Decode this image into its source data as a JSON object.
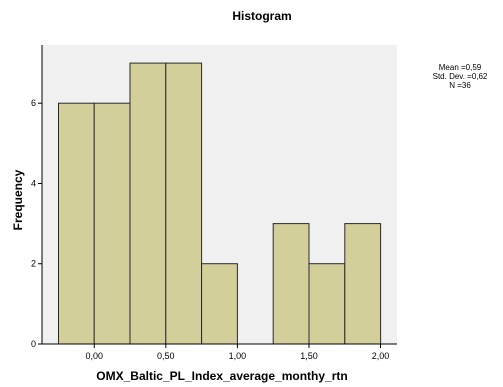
{
  "chart_data": {
    "type": "bar",
    "title": "Histogram",
    "xlabel": "OMX_Baltic_PL_Index_average_monthy_rtn",
    "ylabel": "Frequency",
    "bin_width": 0.25,
    "bins": [
      {
        "from": -0.25,
        "to": 0.0,
        "count": 6
      },
      {
        "from": 0.0,
        "to": 0.25,
        "count": 6
      },
      {
        "from": 0.25,
        "to": 0.5,
        "count": 7
      },
      {
        "from": 0.5,
        "to": 0.75,
        "count": 7
      },
      {
        "from": 0.75,
        "to": 1.0,
        "count": 2
      },
      {
        "from": 1.0,
        "to": 1.25,
        "count": 0
      },
      {
        "from": 1.25,
        "to": 1.5,
        "count": 3
      },
      {
        "from": 1.5,
        "to": 1.75,
        "count": 2
      },
      {
        "from": 1.75,
        "to": 2.0,
        "count": 3
      }
    ],
    "xlim": [
      -0.365,
      2.115
    ],
    "ylim": [
      0,
      7.45
    ],
    "x_ticks": [
      0.0,
      0.5,
      1.0,
      1.5,
      2.0
    ],
    "x_tick_labels": [
      "0,00",
      "0,50",
      "1,00",
      "1,50",
      "2,00"
    ],
    "y_ticks": [
      0,
      2,
      4,
      6
    ],
    "y_tick_labels": [
      "0",
      "2",
      "4",
      "6"
    ],
    "grid": false,
    "stats": [
      "Mean =0,59",
      "Std. Dev. =0,62",
      "N =36"
    ]
  },
  "colors": {
    "bar_fill": "#d3cf9b",
    "bar_stroke": "#2a2a2a",
    "plot_bg": "#f0f0f0"
  }
}
